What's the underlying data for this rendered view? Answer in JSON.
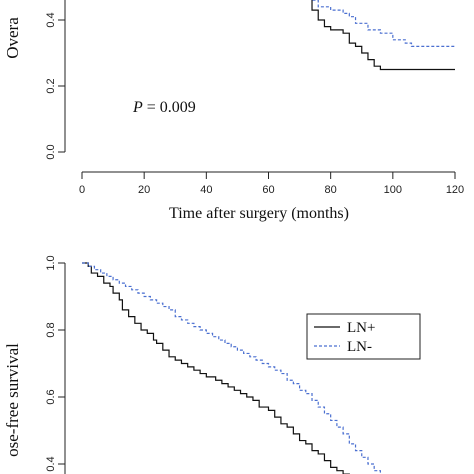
{
  "chart_data": [
    {
      "type": "line",
      "step": true,
      "ylabel": "Overa",
      "xlabel": "Time after surgery (months)",
      "annotation": {
        "prefix": "P",
        "text": " = 0.009"
      },
      "xlim": [
        0,
        120
      ],
      "ylim": [
        0,
        1
      ],
      "xticks": [
        "0",
        "20",
        "40",
        "60",
        "80",
        "100",
        "120"
      ],
      "yticks": [
        "0.0",
        "0.2",
        "0.4"
      ],
      "series": [
        {
          "style": "solid",
          "color": "#111111",
          "points": [
            [
              72,
              0.47
            ],
            [
              74,
              0.43
            ],
            [
              76,
              0.4
            ],
            [
              78,
              0.38
            ],
            [
              80,
              0.37
            ],
            [
              84,
              0.36
            ],
            [
              86,
              0.33
            ],
            [
              88,
              0.32
            ],
            [
              90,
              0.3
            ],
            [
              92,
              0.28
            ],
            [
              94,
              0.26
            ],
            [
              96,
              0.25
            ],
            [
              120,
              0.25
            ]
          ]
        },
        {
          "style": "dashed",
          "color": "#4a6fd0",
          "points": [
            [
              72,
              0.47
            ],
            [
              74,
              0.46
            ],
            [
              76,
              0.44
            ],
            [
              80,
              0.43
            ],
            [
              84,
              0.42
            ],
            [
              86,
              0.41
            ],
            [
              88,
              0.39
            ],
            [
              92,
              0.37
            ],
            [
              96,
              0.36
            ],
            [
              100,
              0.34
            ],
            [
              104,
              0.33
            ],
            [
              106,
              0.32
            ],
            [
              120,
              0.32
            ]
          ]
        }
      ]
    },
    {
      "type": "line",
      "step": true,
      "ylabel": "ose-free survival",
      "xlim": [
        0,
        120
      ],
      "ylim": [
        0,
        1
      ],
      "yticks": [
        "0.4",
        "0.6",
        "0.8",
        "1.0"
      ],
      "legend": {
        "position": "right",
        "entries": [
          {
            "name": "LN+",
            "style": "solid",
            "color": "#111111"
          },
          {
            "name": "LN-",
            "style": "dashed",
            "color": "#4a6fd0"
          }
        ]
      },
      "series": [
        {
          "name": "LN+",
          "style": "solid",
          "color": "#111111",
          "points": [
            [
              0,
              1.0
            ],
            [
              2,
              0.99
            ],
            [
              3,
              0.97
            ],
            [
              5,
              0.96
            ],
            [
              7,
              0.94
            ],
            [
              9,
              0.93
            ],
            [
              10,
              0.91
            ],
            [
              12,
              0.89
            ],
            [
              13,
              0.86
            ],
            [
              15,
              0.84
            ],
            [
              17,
              0.82
            ],
            [
              19,
              0.8
            ],
            [
              21,
              0.79
            ],
            [
              23,
              0.77
            ],
            [
              24,
              0.76
            ],
            [
              26,
              0.74
            ],
            [
              28,
              0.72
            ],
            [
              30,
              0.71
            ],
            [
              32,
              0.7
            ],
            [
              34,
              0.69
            ],
            [
              36,
              0.68
            ],
            [
              38,
              0.67
            ],
            [
              40,
              0.66
            ],
            [
              43,
              0.65
            ],
            [
              45,
              0.64
            ],
            [
              47,
              0.63
            ],
            [
              49,
              0.62
            ],
            [
              51,
              0.61
            ],
            [
              53,
              0.6
            ],
            [
              55,
              0.59
            ],
            [
              57,
              0.57
            ],
            [
              60,
              0.56
            ],
            [
              62,
              0.54
            ],
            [
              64,
              0.52
            ],
            [
              66,
              0.51
            ],
            [
              68,
              0.49
            ],
            [
              70,
              0.47
            ],
            [
              72,
              0.46
            ],
            [
              74,
              0.44
            ],
            [
              76,
              0.43
            ],
            [
              78,
              0.41
            ],
            [
              80,
              0.39
            ],
            [
              82,
              0.38
            ],
            [
              84,
              0.37
            ],
            [
              86,
              0.36
            ],
            [
              88,
              0.34
            ]
          ]
        },
        {
          "name": "LN-",
          "style": "dashed",
          "color": "#4a6fd0",
          "points": [
            [
              0,
              1.0
            ],
            [
              2,
              0.99
            ],
            [
              4,
              0.98
            ],
            [
              6,
              0.97
            ],
            [
              8,
              0.96
            ],
            [
              10,
              0.95
            ],
            [
              12,
              0.94
            ],
            [
              14,
              0.93
            ],
            [
              16,
              0.92
            ],
            [
              18,
              0.91
            ],
            [
              20,
              0.9
            ],
            [
              22,
              0.89
            ],
            [
              24,
              0.88
            ],
            [
              26,
              0.87
            ],
            [
              28,
              0.86
            ],
            [
              30,
              0.84
            ],
            [
              32,
              0.83
            ],
            [
              34,
              0.82
            ],
            [
              36,
              0.81
            ],
            [
              38,
              0.8
            ],
            [
              40,
              0.79
            ],
            [
              42,
              0.78
            ],
            [
              44,
              0.77
            ],
            [
              46,
              0.76
            ],
            [
              48,
              0.75
            ],
            [
              50,
              0.74
            ],
            [
              52,
              0.73
            ],
            [
              54,
              0.72
            ],
            [
              56,
              0.71
            ],
            [
              58,
              0.7
            ],
            [
              60,
              0.69
            ],
            [
              62,
              0.68
            ],
            [
              64,
              0.67
            ],
            [
              66,
              0.65
            ],
            [
              68,
              0.64
            ],
            [
              70,
              0.62
            ],
            [
              72,
              0.61
            ],
            [
              74,
              0.59
            ],
            [
              76,
              0.57
            ],
            [
              78,
              0.55
            ],
            [
              80,
              0.53
            ],
            [
              82,
              0.51
            ],
            [
              84,
              0.49
            ],
            [
              86,
              0.46
            ],
            [
              88,
              0.44
            ],
            [
              90,
              0.42
            ],
            [
              92,
              0.4
            ],
            [
              94,
              0.38
            ],
            [
              96,
              0.36
            ]
          ]
        }
      ]
    }
  ]
}
